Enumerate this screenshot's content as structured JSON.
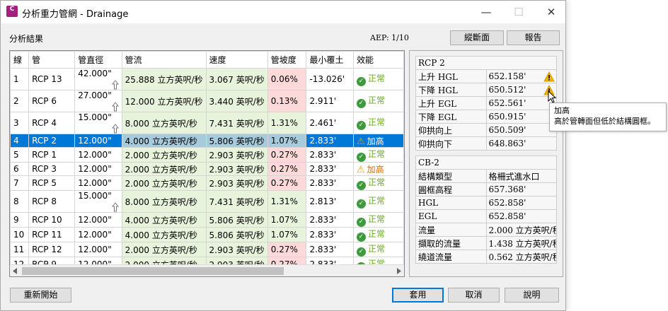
{
  "window": {
    "title": "分析重力管網 - Drainage",
    "icon_label": "C",
    "minimize": "—",
    "maximize": "☐",
    "close": "✕"
  },
  "header": {
    "section_label": "分析結果",
    "aep": "AEP: 1/10",
    "profile_button": "縱斷面",
    "report_button": "報告"
  },
  "grid": {
    "columns": [
      "線",
      "管",
      "管直徑",
      "管流",
      "速度",
      "管坡度",
      "最小覆土",
      "效能"
    ],
    "rows": [
      {
        "line": "1",
        "pipe": "RCP 13",
        "dia": "42.000\"",
        "up": true,
        "flow": "25.888 立方英呎/秒",
        "vel": "3.067 英呎/秒",
        "slope": "0.06%",
        "slope_ok": false,
        "cover": "-13.026'",
        "status": "正常",
        "warn": false
      },
      {
        "line": "2",
        "pipe": "RCP 6",
        "dia": "27.000\"",
        "up": true,
        "flow": "12.000 立方英呎/秒",
        "vel": "3.440 英呎/秒",
        "slope": "0.13%",
        "slope_ok": false,
        "cover": "2.911'",
        "status": "正常",
        "warn": false
      },
      {
        "line": "3",
        "pipe": "RCP 4",
        "dia": "15.000\"",
        "up": true,
        "flow": "8.000 立方英呎/秒",
        "vel": "7.431 英呎/秒",
        "slope": "1.31%",
        "slope_ok": true,
        "cover": "2.461'",
        "status": "正常",
        "warn": false
      },
      {
        "line": "4",
        "pipe": "RCP 2",
        "dia": "12.000\"",
        "up": false,
        "flow": "4.000 立方英呎/秒",
        "vel": "5.806 英呎/秒",
        "slope": "1.07%",
        "slope_ok": true,
        "cover": "2.833'",
        "status": "加高",
        "warn": true,
        "selected": true
      },
      {
        "line": "5",
        "pipe": "RCP 1",
        "dia": "12.000\"",
        "up": false,
        "flow": "2.000 立方英呎/秒",
        "vel": "2.903 英呎/秒",
        "slope": "0.27%",
        "slope_ok": false,
        "cover": "2.833'",
        "status": "正常",
        "warn": false
      },
      {
        "line": "6",
        "pipe": "RCP 3",
        "dia": "12.000\"",
        "up": false,
        "flow": "2.000 立方英呎/秒",
        "vel": "2.903 英呎/秒",
        "slope": "0.27%",
        "slope_ok": false,
        "cover": "2.833'",
        "status": "加高",
        "warn": true
      },
      {
        "line": "7",
        "pipe": "RCP 5",
        "dia": "12.000\"",
        "up": false,
        "flow": "2.000 立方英呎/秒",
        "vel": "2.903 英呎/秒",
        "slope": "0.27%",
        "slope_ok": false,
        "cover": "2.833'",
        "status": "正常",
        "warn": false
      },
      {
        "line": "8",
        "pipe": "RCP 8",
        "dia": "15.000\"",
        "up": true,
        "flow": "8.000 立方英呎/秒",
        "vel": "7.431 英呎/秒",
        "slope": "1.31%",
        "slope_ok": true,
        "cover": "2.813'",
        "status": "正常",
        "warn": false
      },
      {
        "line": "9",
        "pipe": "RCP 10",
        "dia": "12.000\"",
        "up": false,
        "flow": "4.000 立方英呎/秒",
        "vel": "5.806 英呎/秒",
        "slope": "1.07%",
        "slope_ok": true,
        "cover": "2.833'",
        "status": "正常",
        "warn": false
      },
      {
        "line": "10",
        "pipe": "RCP 11",
        "dia": "12.000\"",
        "up": false,
        "flow": "4.000 立方英呎/秒",
        "vel": "5.806 英呎/秒",
        "slope": "1.07%",
        "slope_ok": true,
        "cover": "2.833'",
        "status": "正常",
        "warn": false
      },
      {
        "line": "11",
        "pipe": "RCP 12",
        "dia": "12.000\"",
        "up": false,
        "flow": "2.000 立方英呎/秒",
        "vel": "2.903 英呎/秒",
        "slope": "0.27%",
        "slope_ok": false,
        "cover": "2.833'",
        "status": "正常",
        "warn": false
      },
      {
        "line": "12",
        "pipe": "RCP 9",
        "dia": "12.000\"",
        "up": false,
        "flow": "2.000 立方英呎/秒",
        "vel": "2.903 英呎/秒",
        "slope": "0.27%",
        "slope_ok": false,
        "cover": "2.833'",
        "status": "正常",
        "warn": false
      },
      {
        "line": "13",
        "pipe": "RCP 7",
        "dia": "12.000\"",
        "up": false,
        "flow": "2.000 立方英呎/秒",
        "vel": "2.903 英呎/秒",
        "slope": "0.27%",
        "slope_ok": false,
        "cover": "2.833'",
        "status": "正常",
        "warn": false
      }
    ]
  },
  "pipe_panel": {
    "title": "RCP 2",
    "rows": [
      {
        "label": "上升 HGL",
        "value": "652.158'",
        "warn": true
      },
      {
        "label": "下降 HGL",
        "value": "650.512'",
        "warn": true
      },
      {
        "label": "上升 EGL",
        "value": "652.561'"
      },
      {
        "label": "下降 EGL",
        "value": "650.915'"
      },
      {
        "label": "仰拱向上",
        "value": "650.509'"
      },
      {
        "label": "仰拱向下",
        "value": "648.863'"
      }
    ]
  },
  "structure_panel": {
    "title": "CB-2",
    "rows": [
      {
        "label": "結構類型",
        "value": "格柵式進水口"
      },
      {
        "label": "圓框高程",
        "value": "657.368'"
      },
      {
        "label": "HGL",
        "value": "652.858'"
      },
      {
        "label": "EGL",
        "value": "652.858'"
      },
      {
        "label": "流量",
        "value": "2.000 立方英呎/秒"
      },
      {
        "label": "擷取的流量",
        "value": "1.438 立方英呎/秒"
      },
      {
        "label": "繞道流量",
        "value": "0.562 立方英呎/秒"
      }
    ]
  },
  "tooltip": {
    "title": "加高",
    "text": "高於管轉面但低於結構圓框。"
  },
  "footer": {
    "restart": "重新開始",
    "apply": "套用",
    "cancel": "取消",
    "help": "說明"
  }
}
